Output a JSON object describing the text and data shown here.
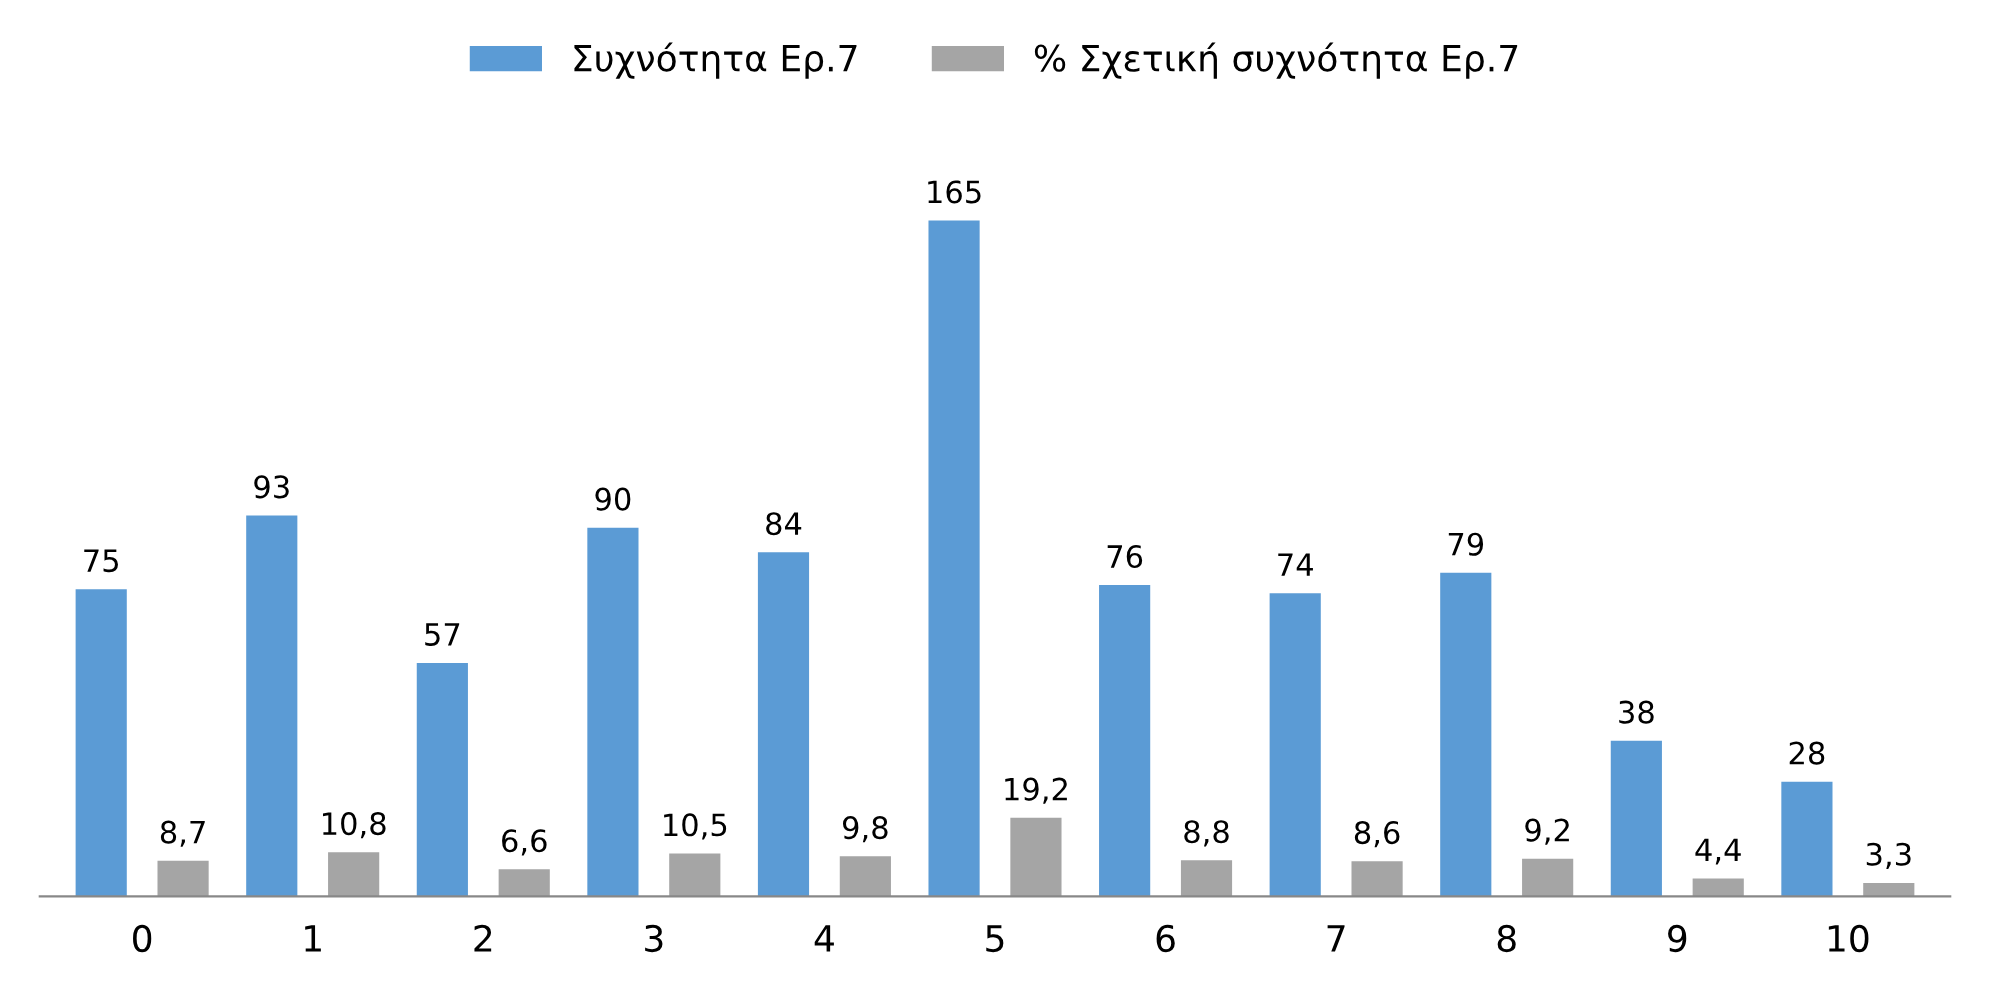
{
  "chart_data": {
    "type": "bar",
    "categories": [
      "0",
      "1",
      "2",
      "3",
      "4",
      "5",
      "6",
      "7",
      "8",
      "9",
      "10"
    ],
    "series": [
      {
        "name": "Συχνότητα Ερ.7",
        "color": "#5b9bd5",
        "values": [
          75,
          93,
          57,
          90,
          84,
          165,
          76,
          74,
          79,
          38,
          28
        ],
        "value_labels": [
          "75",
          "93",
          "57",
          "90",
          "84",
          "165",
          "76",
          "74",
          "79",
          "38",
          "28"
        ]
      },
      {
        "name": "% Σχετική συχνότητα Ερ.7",
        "color": "#a5a5a5",
        "values": [
          8.7,
          10.8,
          6.6,
          10.5,
          9.8,
          19.2,
          8.8,
          8.6,
          9.2,
          4.4,
          3.3
        ],
        "value_labels": [
          "8,7",
          "10,8",
          "6,6",
          "10,5",
          "9,8",
          "19,2",
          "8,8",
          "8,6",
          "9,2",
          "4,4",
          "3,3"
        ]
      }
    ],
    "legend": "top",
    "grid": false
  }
}
